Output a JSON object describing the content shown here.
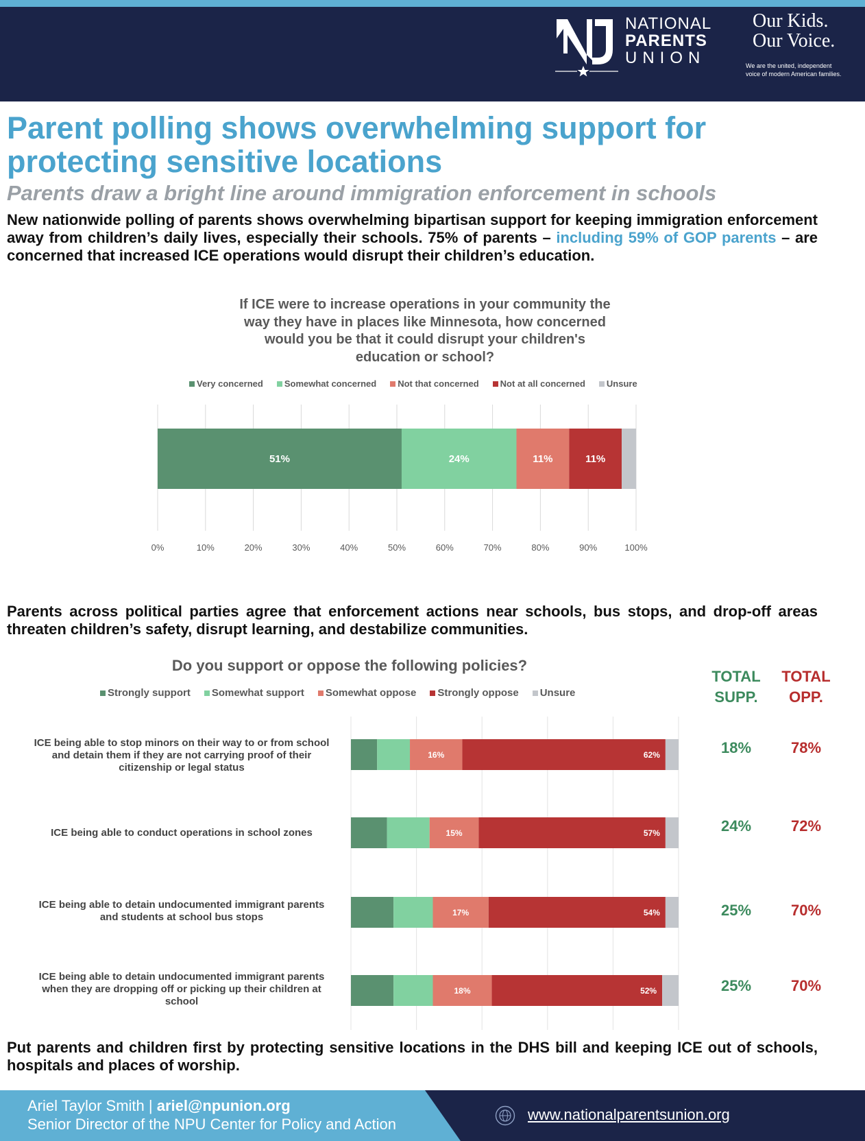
{
  "header": {
    "logo_line1": "NATIONAL",
    "logo_line2": "PARENTS",
    "logo_line3": "UNION",
    "tagline_line1": "Our Kids.",
    "tagline_line2": "Our Voice.",
    "tagline_sub_line1": "We are the united, independent",
    "tagline_sub_line2": "voice of modern American families."
  },
  "title": "Parent polling shows overwhelming support for protecting sensitive locations",
  "subtitle": "Parents draw a bright line around immigration enforcement in schools",
  "intro": {
    "part1": "New nationwide polling of parents shows overwhelming bipartisan support for keeping immigration enforcement away from children’s daily lives, especially their schools. 75% of parents – ",
    "highlight": "including 59% of GOP parents",
    "part2": " – are concerned that increased ICE operations would disrupt their children’s education."
  },
  "middle_paragraph": "Parents across political parties agree that enforcement actions near schools, bus stops, and drop-off areas threaten children’s safety, disrupt learning, and destabilize communities.",
  "closing_paragraph": "Put parents and children first by protecting sensitive locations in the DHS bill and keeping ICE out of schools, hospitals and places of worship.",
  "colors": {
    "dark_green": "#5a9170",
    "light_green": "#81d1a0",
    "salmon": "#e07a6c",
    "dark_red": "#b73434",
    "gray": "#c3c6cb"
  },
  "chart_data": [
    {
      "type": "bar",
      "orientation": "horizontal-stacked",
      "title_lines": [
        "If ICE were to increase operations in your community the",
        "way they have in places like Minnesota, how concerned",
        "would you be that it could disrupt your children's",
        "education or school?"
      ],
      "legend": [
        "Very concerned",
        "Somewhat concerned",
        "Not that concerned",
        "Not at all concerned",
        "Unsure"
      ],
      "series": [
        {
          "name": "Very concerned",
          "values": [
            51
          ],
          "label": "51%"
        },
        {
          "name": "Somewhat concerned",
          "values": [
            24
          ],
          "label": "24%"
        },
        {
          "name": "Not that concerned",
          "values": [
            11
          ],
          "label": "11%"
        },
        {
          "name": "Not at all concerned",
          "values": [
            11
          ],
          "label": "11%"
        },
        {
          "name": "Unsure",
          "values": [
            3
          ],
          "label": ""
        }
      ],
      "x_ticks": [
        "0%",
        "10%",
        "20%",
        "30%",
        "40%",
        "50%",
        "60%",
        "70%",
        "80%",
        "90%",
        "100%"
      ],
      "xlim": [
        0,
        100
      ]
    },
    {
      "type": "bar",
      "orientation": "horizontal-stacked",
      "title": "Do you support or oppose the following policies?",
      "legend": [
        "Strongly support",
        "Somewhat support",
        "Somewhat oppose",
        "Strongly oppose",
        "Unsure"
      ],
      "categories": [
        [
          "ICE being able to stop minors on their way to or from school",
          "and detain them if they are not carrying proof of their",
          "citizenship or legal status"
        ],
        [
          "ICE being able to conduct operations in school zones"
        ],
        [
          "ICE being able to detain undocumented immigrant parents",
          "and students at school bus stops"
        ],
        [
          "ICE being able to detain undocumented immigrant parents",
          "when they are dropping off or picking up their children at",
          "school"
        ]
      ],
      "rows": [
        {
          "values": [
            8,
            10,
            16,
            62,
            4
          ],
          "labels": [
            "",
            "",
            "16%",
            "62%",
            ""
          ],
          "total_support": "18%",
          "total_oppose": "78%"
        },
        {
          "values": [
            11,
            13,
            15,
            57,
            4
          ],
          "labels": [
            "",
            "",
            "15%",
            "57%",
            ""
          ],
          "total_support": "24%",
          "total_oppose": "72%"
        },
        {
          "values": [
            13,
            12,
            17,
            54,
            4
          ],
          "labels": [
            "",
            "",
            "17%",
            "54%",
            ""
          ],
          "total_support": "25%",
          "total_oppose": "70%"
        },
        {
          "values": [
            13,
            12,
            18,
            52,
            5
          ],
          "labels": [
            "",
            "",
            "18%",
            "52%",
            ""
          ],
          "total_support": "25%",
          "total_oppose": "70%"
        }
      ],
      "totals_header": {
        "support_line1": "TOTAL",
        "support_line2": "SUPP.",
        "oppose_line1": "TOTAL",
        "oppose_line2": "OPP."
      },
      "xlim": [
        0,
        100
      ]
    }
  ],
  "footer": {
    "name": "Ariel Taylor Smith | ",
    "email": "ariel@npunion.org",
    "role": "Senior Director of the NPU Center for Policy and Action",
    "url": "www.nationalparentsunion.org"
  }
}
